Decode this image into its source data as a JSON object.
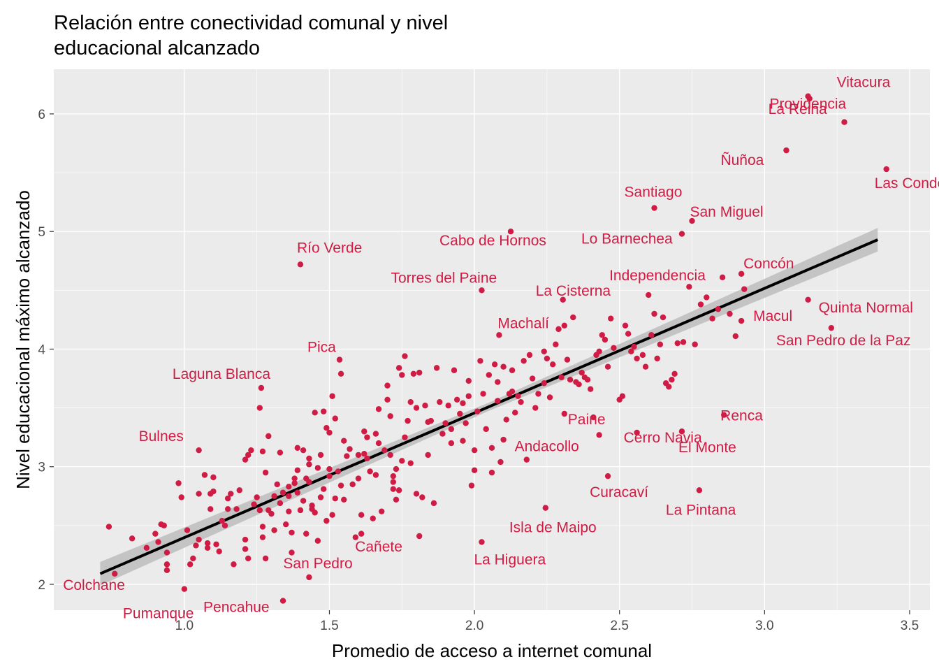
{
  "chart_data": {
    "type": "scatter",
    "title_lines": [
      "Relación entre conectividad comunal y nivel",
      "educacional alcanzado"
    ],
    "xlabel": "Promedio de acceso a internet comunal",
    "ylabel": "Nivel educacional máximo alcanzado",
    "xlim": [
      0.55,
      3.57
    ],
    "ylim": [
      1.78,
      6.38
    ],
    "x_ticks": [
      1.0,
      1.5,
      2.0,
      2.5,
      3.0,
      3.5
    ],
    "x_tick_labels": [
      "1.0",
      "1.5",
      "2.0",
      "2.5",
      "3.0",
      "3.5"
    ],
    "y_ticks": [
      2,
      3,
      4,
      5,
      6
    ],
    "y_tick_labels": [
      "2",
      "3",
      "4",
      "5",
      "6"
    ],
    "grid": true,
    "colors": {
      "panel": "#ebebeb",
      "grid_major": "#ffffff",
      "points": "#d01c44",
      "labels": "#d01c44",
      "fit_line": "#000000",
      "confidence_band": "#c4c4c4"
    },
    "trend": {
      "type": "linear",
      "x": [
        0.71,
        3.39
      ],
      "y": [
        2.09,
        4.93
      ],
      "band_width_x": [
        0.71,
        2.05,
        3.39
      ],
      "band_width": [
        0.1,
        0.035,
        0.1
      ]
    },
    "labeled_points": [
      {
        "name": "Vitacura",
        "x": 3.15,
        "y": 6.15
      },
      {
        "name": "Providencia",
        "x": 3.275,
        "y": 5.93
      },
      {
        "name": "Las Condes",
        "x": 3.42,
        "y": 5.53
      },
      {
        "name": "Ñuñoa",
        "x": 3.075,
        "y": 5.69
      },
      {
        "name": "La Reina",
        "x": 3.155,
        "y": 6.13
      },
      {
        "name": "Santiago",
        "x": 2.62,
        "y": 5.2
      },
      {
        "name": "San Miguel",
        "x": 2.75,
        "y": 5.09
      },
      {
        "name": "Lo Barnechea",
        "x": 2.715,
        "y": 4.98
      },
      {
        "name": "Cabo de Hornos",
        "x": 2.125,
        "y": 5.0
      },
      {
        "name": "Río Verde",
        "x": 1.4,
        "y": 4.72
      },
      {
        "name": "Independencia",
        "x": 2.855,
        "y": 4.61
      },
      {
        "name": "Concón",
        "x": 2.92,
        "y": 4.64
      },
      {
        "name": "Torres del Paine",
        "x": 2.025,
        "y": 4.5
      },
      {
        "name": "La Cisterna",
        "x": 2.305,
        "y": 4.42
      },
      {
        "name": "Macul",
        "x": 2.92,
        "y": 4.24
      },
      {
        "name": "Quinta Normal",
        "x": 3.15,
        "y": 4.42
      },
      {
        "name": "San Pedro de la Paz",
        "x": 3.23,
        "y": 4.18
      },
      {
        "name": "Machalí",
        "x": 2.085,
        "y": 4.12
      },
      {
        "name": "Pica",
        "x": 1.535,
        "y": 3.91
      },
      {
        "name": "Laguna Blanca",
        "x": 1.265,
        "y": 3.67
      },
      {
        "name": "Renca",
        "x": 2.86,
        "y": 3.44
      },
      {
        "name": "Paine",
        "x": 2.31,
        "y": 3.45
      },
      {
        "name": "Cerro Navia",
        "x": 2.56,
        "y": 3.29
      },
      {
        "name": "El Monte",
        "x": 2.715,
        "y": 3.3
      },
      {
        "name": "Bulnes",
        "x": 1.05,
        "y": 3.14
      },
      {
        "name": "Andacollo",
        "x": 2.43,
        "y": 3.27
      },
      {
        "name": "Curacaví",
        "x": 2.46,
        "y": 2.92
      },
      {
        "name": "La Pintana",
        "x": 2.775,
        "y": 2.8
      },
      {
        "name": "Isla de Maipo",
        "x": 2.245,
        "y": 2.65
      },
      {
        "name": "La Higuera",
        "x": 2.025,
        "y": 2.36
      },
      {
        "name": "Cañete",
        "x": 1.81,
        "y": 2.41
      },
      {
        "name": "San Pedro",
        "x": 1.43,
        "y": 2.06
      },
      {
        "name": "Colchane",
        "x": 0.76,
        "y": 2.09
      },
      {
        "name": "Pumanque",
        "x": 1.0,
        "y": 1.96
      },
      {
        "name": "Pencahue",
        "x": 1.34,
        "y": 1.86
      }
    ],
    "points": [
      [
        0.74,
        2.49
      ],
      [
        0.82,
        2.39
      ],
      [
        0.87,
        2.31
      ],
      [
        0.9,
        2.43
      ],
      [
        0.91,
        2.36
      ],
      [
        0.92,
        2.51
      ],
      [
        0.93,
        2.5
      ],
      [
        0.94,
        2.12
      ],
      [
        0.94,
        2.17
      ],
      [
        0.94,
        2.27
      ],
      [
        0.98,
        2.86
      ],
      [
        0.99,
        2.74
      ],
      [
        1.01,
        2.46
      ],
      [
        1.02,
        2.17
      ],
      [
        1.03,
        2.22
      ],
      [
        1.04,
        2.33
      ],
      [
        1.05,
        2.77
      ],
      [
        1.07,
        2.93
      ],
      [
        1.08,
        2.35
      ],
      [
        1.08,
        2.31
      ],
      [
        1.09,
        2.77
      ],
      [
        1.09,
        2.64
      ],
      [
        1.1,
        2.91
      ],
      [
        1.1,
        2.79
      ],
      [
        1.11,
        2.34
      ],
      [
        1.12,
        2.28
      ],
      [
        1.13,
        2.54
      ],
      [
        1.14,
        2.5
      ],
      [
        1.15,
        2.64
      ],
      [
        1.15,
        2.73
      ],
      [
        1.16,
        2.77
      ],
      [
        1.17,
        2.17
      ],
      [
        1.19,
        2.8
      ],
      [
        1.21,
        2.38
      ],
      [
        1.21,
        2.3
      ],
      [
        1.21,
        3.06
      ],
      [
        1.22,
        2.22
      ],
      [
        1.22,
        3.1
      ],
      [
        1.23,
        3.14
      ],
      [
        1.24,
        2.68
      ],
      [
        1.25,
        2.74
      ],
      [
        1.26,
        2.63
      ],
      [
        1.26,
        3.5
      ],
      [
        1.27,
        2.49
      ],
      [
        1.27,
        2.4
      ],
      [
        1.27,
        3.13
      ],
      [
        1.28,
        2.22
      ],
      [
        1.29,
        3.26
      ],
      [
        1.29,
        2.63
      ],
      [
        1.3,
        2.6
      ],
      [
        1.31,
        2.75
      ],
      [
        1.31,
        2.46
      ],
      [
        1.32,
        2.85
      ],
      [
        1.33,
        3.12
      ],
      [
        1.33,
        2.69
      ],
      [
        1.34,
        2.78
      ],
      [
        1.35,
        2.51
      ],
      [
        1.36,
        2.83
      ],
      [
        1.36,
        2.62
      ],
      [
        1.37,
        2.44
      ],
      [
        1.37,
        2.27
      ],
      [
        1.38,
        2.9
      ],
      [
        1.38,
        2.86
      ],
      [
        1.39,
        3.16
      ],
      [
        1.39,
        2.78
      ],
      [
        1.4,
        2.63
      ],
      [
        1.41,
        3.14
      ],
      [
        1.41,
        2.71
      ],
      [
        1.42,
        2.43
      ],
      [
        1.42,
        2.9
      ],
      [
        1.43,
        3.07
      ],
      [
        1.43,
        3.02
      ],
      [
        1.44,
        2.64
      ],
      [
        1.45,
        3.46
      ],
      [
        1.45,
        2.61
      ],
      [
        1.46,
        2.37
      ],
      [
        1.46,
        2.99
      ],
      [
        1.47,
        3.1
      ],
      [
        1.47,
        2.74
      ],
      [
        1.48,
        3.47
      ],
      [
        1.48,
        2.81
      ],
      [
        1.49,
        3.33
      ],
      [
        1.49,
        2.54
      ],
      [
        1.5,
        3.29
      ],
      [
        1.5,
        2.92
      ],
      [
        1.51,
        3.6
      ],
      [
        1.51,
        2.59
      ],
      [
        1.52,
        2.73
      ],
      [
        1.52,
        3.41
      ],
      [
        1.53,
        2.96
      ],
      [
        1.54,
        3.79
      ],
      [
        1.54,
        2.84
      ],
      [
        1.55,
        3.22
      ],
      [
        1.56,
        3.09
      ],
      [
        1.57,
        3.15
      ],
      [
        1.58,
        2.85
      ],
      [
        1.59,
        2.4
      ],
      [
        1.6,
        3.1
      ],
      [
        1.61,
        2.59
      ],
      [
        1.61,
        2.43
      ],
      [
        1.62,
        3.11
      ],
      [
        1.63,
        3.07
      ],
      [
        1.63,
        3.25
      ],
      [
        1.64,
        2.96
      ],
      [
        1.65,
        2.56
      ],
      [
        1.66,
        3.28
      ],
      [
        1.66,
        2.93
      ],
      [
        1.67,
        3.49
      ],
      [
        1.68,
        2.62
      ],
      [
        1.69,
        3.14
      ],
      [
        1.7,
        3.69
      ],
      [
        1.7,
        3.57
      ],
      [
        1.71,
        3.43
      ],
      [
        1.71,
        3.1
      ],
      [
        1.72,
        2.87
      ],
      [
        1.72,
        2.81
      ],
      [
        1.73,
        2.98
      ],
      [
        1.73,
        2.72
      ],
      [
        1.74,
        3.84
      ],
      [
        1.74,
        2.8
      ],
      [
        1.75,
        3.78
      ],
      [
        1.76,
        3.94
      ],
      [
        1.76,
        3.25
      ],
      [
        1.77,
        3.39
      ],
      [
        1.78,
        3.03
      ],
      [
        1.78,
        3.55
      ],
      [
        1.79,
        3.79
      ],
      [
        1.8,
        3.5
      ],
      [
        1.8,
        2.77
      ],
      [
        1.81,
        3.8
      ],
      [
        1.82,
        2.74
      ],
      [
        1.83,
        3.52
      ],
      [
        1.84,
        3.1
      ],
      [
        1.85,
        3.39
      ],
      [
        1.86,
        2.69
      ],
      [
        1.87,
        3.84
      ],
      [
        1.88,
        3.55
      ],
      [
        1.89,
        3.28
      ],
      [
        1.9,
        3.37
      ],
      [
        1.91,
        3.52
      ],
      [
        1.92,
        3.32
      ],
      [
        1.93,
        3.82
      ],
      [
        1.94,
        3.57
      ],
      [
        1.95,
        3.45
      ],
      [
        1.96,
        3.22
      ],
      [
        1.97,
        3.37
      ],
      [
        1.98,
        3.73
      ],
      [
        1.99,
        2.84
      ],
      [
        2.0,
        2.97
      ],
      [
        2.0,
        3.14
      ],
      [
        2.01,
        3.47
      ],
      [
        2.02,
        3.9
      ],
      [
        2.03,
        3.62
      ],
      [
        2.04,
        3.32
      ],
      [
        2.05,
        3.78
      ],
      [
        2.06,
        2.95
      ],
      [
        2.06,
        3.16
      ],
      [
        2.07,
        3.87
      ],
      [
        2.08,
        3.56
      ],
      [
        2.09,
        3.04
      ],
      [
        2.1,
        3.85
      ],
      [
        2.1,
        3.23
      ],
      [
        2.11,
        3.4
      ],
      [
        2.12,
        3.62
      ],
      [
        2.13,
        3.64
      ],
      [
        2.13,
        3.82
      ],
      [
        2.14,
        3.46
      ],
      [
        2.15,
        3.6
      ],
      [
        2.17,
        3.9
      ],
      [
        2.18,
        3.06
      ],
      [
        2.19,
        3.95
      ],
      [
        2.2,
        3.75
      ],
      [
        2.21,
        3.5
      ],
      [
        2.22,
        3.62
      ],
      [
        2.24,
        3.71
      ],
      [
        2.25,
        3.92
      ],
      [
        2.26,
        3.59
      ],
      [
        2.27,
        3.87
      ],
      [
        2.28,
        4.04
      ],
      [
        2.29,
        4.17
      ],
      [
        2.3,
        3.76
      ],
      [
        2.31,
        4.2
      ],
      [
        2.32,
        3.91
      ],
      [
        2.33,
        3.74
      ],
      [
        2.34,
        4.27
      ],
      [
        2.35,
        3.72
      ],
      [
        2.36,
        3.7
      ],
      [
        2.38,
        3.76
      ],
      [
        2.39,
        3.74
      ],
      [
        2.4,
        3.66
      ],
      [
        2.41,
        3.42
      ],
      [
        2.42,
        3.95
      ],
      [
        2.43,
        3.98
      ],
      [
        2.44,
        4.12
      ],
      [
        2.45,
        4.08
      ],
      [
        2.46,
        3.85
      ],
      [
        2.47,
        4.26
      ],
      [
        2.48,
        4.01
      ],
      [
        2.5,
        3.57
      ],
      [
        2.51,
        3.6
      ],
      [
        2.52,
        4.2
      ],
      [
        2.53,
        4.13
      ],
      [
        2.54,
        3.98
      ],
      [
        2.55,
        4.02
      ],
      [
        2.56,
        3.92
      ],
      [
        2.58,
        3.95
      ],
      [
        2.59,
        3.85
      ],
      [
        2.6,
        4.46
      ],
      [
        2.61,
        4.12
      ],
      [
        2.62,
        4.3
      ],
      [
        2.63,
        3.92
      ],
      [
        2.64,
        4.04
      ],
      [
        2.65,
        4.27
      ],
      [
        2.66,
        3.71
      ],
      [
        2.67,
        3.68
      ],
      [
        2.68,
        3.74
      ],
      [
        2.69,
        3.79
      ],
      [
        2.7,
        4.05
      ],
      [
        2.72,
        4.06
      ],
      [
        2.74,
        4.53
      ],
      [
        2.76,
        4.04
      ],
      [
        2.78,
        4.38
      ],
      [
        2.8,
        4.44
      ],
      [
        2.82,
        4.26
      ],
      [
        2.84,
        4.34
      ],
      [
        2.88,
        4.3
      ],
      [
        2.9,
        4.11
      ],
      [
        2.93,
        4.51
      ],
      [
        1.6,
        2.9
      ],
      [
        1.55,
        2.72
      ],
      [
        1.43,
        2.87
      ],
      [
        1.5,
        2.98
      ],
      [
        1.39,
        2.97
      ],
      [
        1.36,
        2.75
      ],
      [
        1.18,
        2.64
      ],
      [
        1.05,
        2.38
      ],
      [
        1.28,
        2.95
      ],
      [
        1.44,
        2.67
      ],
      [
        1.67,
        3.2
      ],
      [
        1.72,
        2.92
      ],
      [
        1.84,
        3.38
      ],
      [
        1.96,
        3.54
      ],
      [
        2.08,
        3.72
      ],
      [
        2.16,
        3.55
      ],
      [
        2.24,
        3.98
      ],
      [
        2.37,
        3.8
      ],
      [
        1.62,
        3.3
      ],
      [
        1.75,
        3.05
      ],
      [
        1.92,
        3.2
      ],
      [
        1.98,
        3.6
      ]
    ]
  }
}
